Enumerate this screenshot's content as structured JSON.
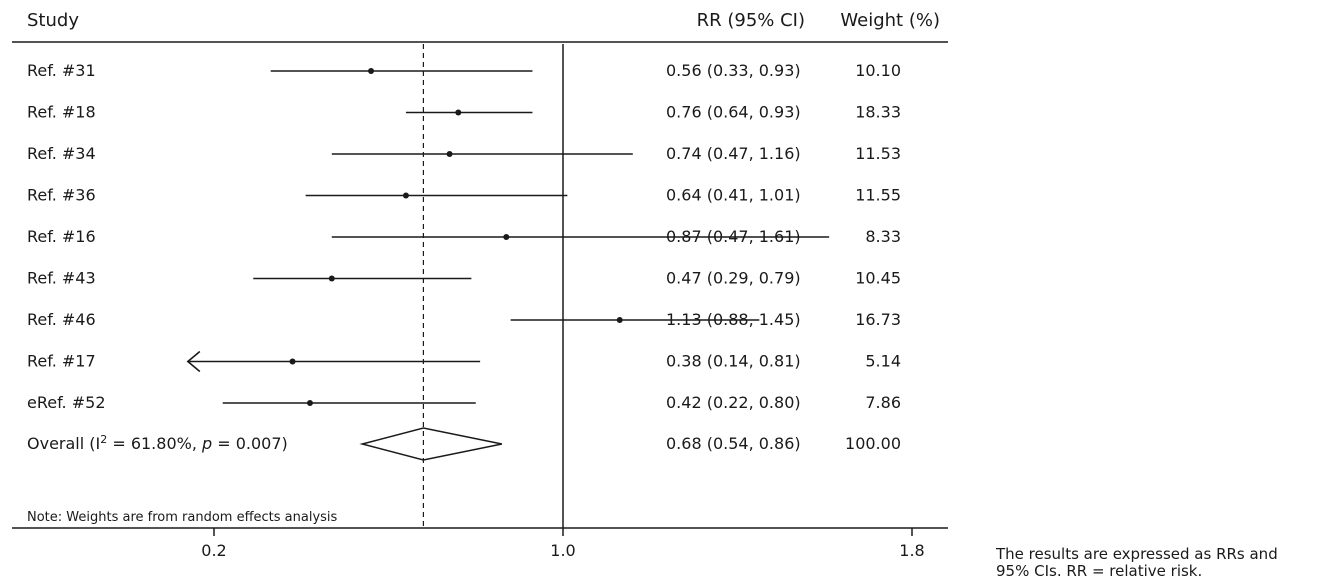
{
  "chart_data": {
    "type": "forest",
    "columns": {
      "study": "Study",
      "rr": "RR (95% CI)",
      "weight": "Weight (%)"
    },
    "studies": [
      {
        "label": "Ref. #31",
        "rr": 0.56,
        "lo": 0.33,
        "hi": 0.93,
        "rr_text": "0.56 (0.33, 0.93)",
        "weight": "10.10"
      },
      {
        "label": "Ref. #18",
        "rr": 0.76,
        "lo": 0.64,
        "hi": 0.93,
        "rr_text": "0.76 (0.64, 0.93)",
        "weight": "18.33"
      },
      {
        "label": "Ref. #34",
        "rr": 0.74,
        "lo": 0.47,
        "hi": 1.16,
        "rr_text": "0.74 (0.47, 1.16)",
        "weight": "11.53"
      },
      {
        "label": "Ref. #36",
        "rr": 0.64,
        "lo": 0.41,
        "hi": 1.01,
        "rr_text": "0.64 (0.41, 1.01)",
        "weight": "11.55"
      },
      {
        "label": "Ref. #16",
        "rr": 0.87,
        "lo": 0.47,
        "hi": 1.61,
        "rr_text": "0.87 (0.47, 1.61)",
        "weight": "8.33"
      },
      {
        "label": "Ref. #43",
        "rr": 0.47,
        "lo": 0.29,
        "hi": 0.79,
        "rr_text": "0.47 (0.29, 0.79)",
        "weight": "10.45"
      },
      {
        "label": "Ref. #46",
        "rr": 1.13,
        "lo": 0.88,
        "hi": 1.45,
        "rr_text": "1.13 (0.88, 1.45)",
        "weight": "16.73"
      },
      {
        "label": "Ref. #17",
        "rr": 0.38,
        "lo": 0.14,
        "hi": 0.81,
        "rr_text": "0.38 (0.14, 0.81)",
        "weight": "5.14",
        "lo_truncated": true
      },
      {
        "label": "eRef. #52",
        "rr": 0.42,
        "lo": 0.22,
        "hi": 0.8,
        "rr_text": "0.42 (0.22, 0.80)",
        "weight": "7.86"
      }
    ],
    "overall": {
      "label_prefix": "Overall (I",
      "label_sup": "2",
      "label_mid": " = 61.80%, ",
      "label_p": "p",
      "label_end": " = 0.007)",
      "rr": 0.68,
      "lo": 0.54,
      "hi": 0.86,
      "rr_text": "0.68 (0.54, 0.86)",
      "weight": "100.00"
    },
    "x_ticks": [
      {
        "value": 0.2,
        "label": "0.2"
      },
      {
        "value": 1.0,
        "label": "1.0"
      },
      {
        "value": 1.8,
        "label": "1.8"
      }
    ],
    "xlim": [
      0.14,
      1.61
    ],
    "null_line": 1.0,
    "note": "Note: Weights are from random effects analysis"
  },
  "caption": {
    "line1": "The results are expressed as RRs and",
    "line2": "95% CIs. RR = relative risk."
  },
  "colors": {
    "ink": "#1a1a1a",
    "background": "#ffffff"
  }
}
